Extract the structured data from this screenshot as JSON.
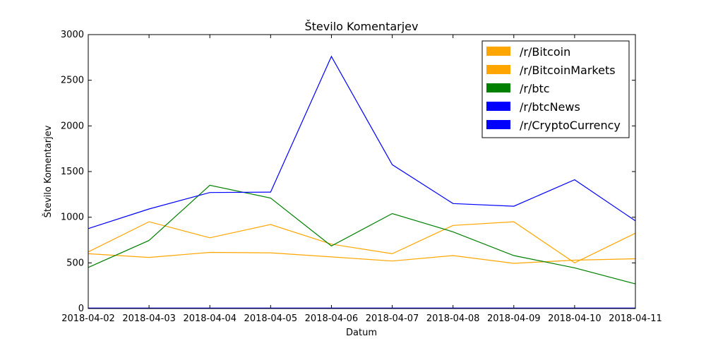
{
  "chart_data": {
    "type": "line",
    "title": "Število Komentarjev",
    "xlabel": "Datum",
    "ylabel": "Število Komentarjev",
    "x": [
      "2018-04-02",
      "2018-04-03",
      "2018-04-04",
      "2018-04-05",
      "2018-04-06",
      "2018-04-07",
      "2018-04-08",
      "2018-04-09",
      "2018-04-10",
      "2018-04-11"
    ],
    "ylim": [
      0,
      3000
    ],
    "yticks": [
      0,
      500,
      1000,
      1500,
      2000,
      2500,
      3000
    ],
    "grid": false,
    "legend_position": "top-right",
    "series": [
      {
        "name": "/r/Bitcoin",
        "color": "#ffa500",
        "values": [
          620,
          950,
          775,
          920,
          705,
          600,
          910,
          950,
          500,
          825
        ]
      },
      {
        "name": "/r/BitcoinMarkets",
        "color": "#ffa500",
        "values": [
          600,
          560,
          615,
          610,
          565,
          520,
          580,
          495,
          530,
          545
        ]
      },
      {
        "name": "/r/btc",
        "color": "#008000",
        "values": [
          450,
          745,
          1350,
          1210,
          685,
          1040,
          840,
          580,
          445,
          270
        ]
      },
      {
        "name": "/r/btcNews",
        "color": "#0000ff",
        "values": [
          875,
          1090,
          1270,
          1275,
          2760,
          1575,
          1150,
          1120,
          1410,
          960
        ]
      },
      {
        "name": "/r/CryptoCurrency",
        "color": "#0000ff",
        "values": [
          5,
          5,
          5,
          5,
          5,
          5,
          5,
          5,
          5,
          5
        ]
      }
    ]
  }
}
